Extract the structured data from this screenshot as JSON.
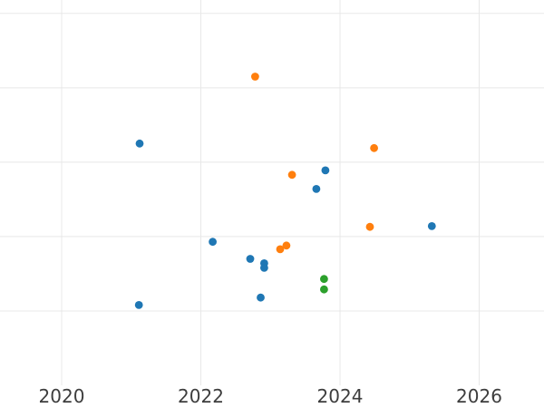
{
  "chart_data": {
    "type": "scatter",
    "title": "",
    "xlabel": "",
    "ylabel": "",
    "xlim": [
      2019.114,
      2026.931
    ],
    "ylim": [
      0,
      5.18
    ],
    "x_tick_labels": [
      "2020",
      "2022",
      "2024",
      "2026"
    ],
    "x_tick_values": [
      2020,
      2022,
      2024,
      2026
    ],
    "y_tick_labels": [],
    "y_gridline_values": [
      1,
      2,
      3,
      4,
      5
    ],
    "grid": true,
    "legend_position": "none",
    "series": [
      {
        "name": "blue",
        "color": "#1f77b4",
        "points": [
          [
            2021.11,
            1.08
          ],
          [
            2021.12,
            3.25
          ],
          [
            2022.17,
            1.93
          ],
          [
            2022.71,
            1.7
          ],
          [
            2022.86,
            1.18
          ],
          [
            2022.91,
            1.64
          ],
          [
            2022.91,
            1.58
          ],
          [
            2023.66,
            2.64
          ],
          [
            2023.79,
            2.89
          ],
          [
            2025.32,
            2.14
          ]
        ]
      },
      {
        "name": "orange",
        "color": "#ff7f0e",
        "points": [
          [
            2022.78,
            4.15
          ],
          [
            2023.14,
            1.83
          ],
          [
            2023.23,
            1.88
          ],
          [
            2023.31,
            2.83
          ],
          [
            2024.43,
            2.13
          ],
          [
            2024.49,
            3.19
          ]
        ]
      },
      {
        "name": "green",
        "color": "#2ca02c",
        "points": [
          [
            2023.77,
            1.43
          ],
          [
            2023.77,
            1.29
          ]
        ]
      }
    ]
  },
  "style": {
    "background": "#ffffff",
    "gridline_color": "#e8e8e8",
    "tick_label_color": "#3d3d3d",
    "marker_radius": 4.4
  }
}
